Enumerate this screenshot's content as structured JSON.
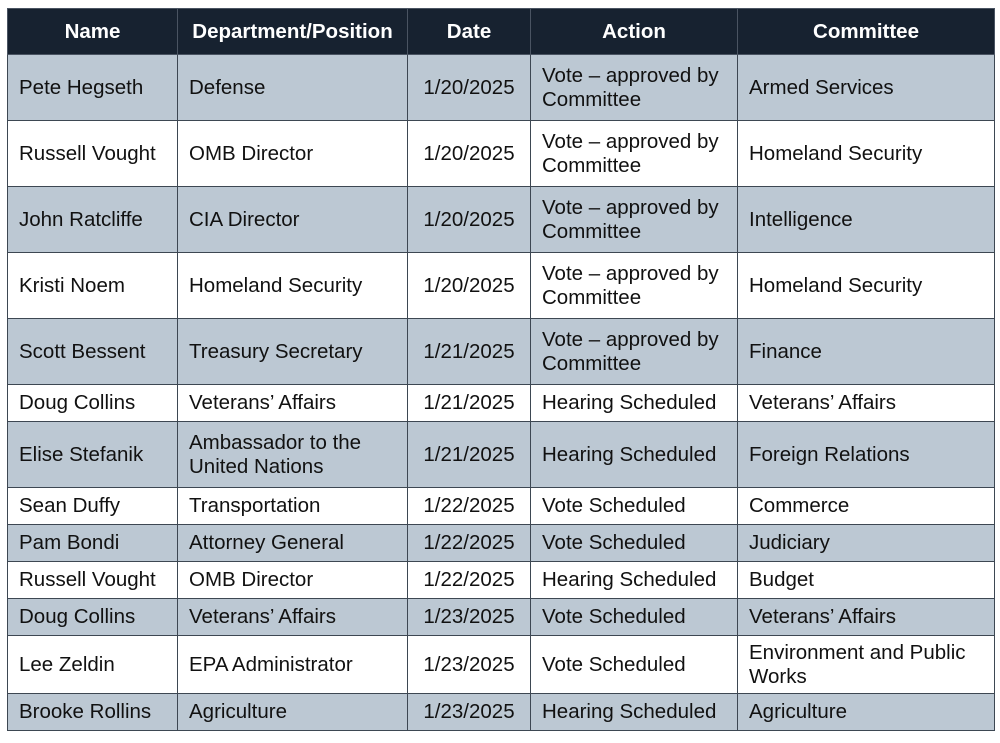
{
  "table": {
    "headers": [
      "Name",
      "Department/Position",
      "Date",
      "Action",
      "Committee"
    ],
    "rows": [
      {
        "name": "Pete Hegseth",
        "department": "Defense",
        "date": "1/20/2025",
        "action": "Vote – approved by Committee",
        "committee": "Armed Services"
      },
      {
        "name": "Russell Vought",
        "department": "OMB Director",
        "date": "1/20/2025",
        "action": "Vote – approved by Committee",
        "committee": "Homeland Security"
      },
      {
        "name": "John Ratcliffe",
        "department": "CIA Director",
        "date": "1/20/2025",
        "action": "Vote – approved by Committee",
        "committee": "Intelligence"
      },
      {
        "name": "Kristi Noem",
        "department": "Homeland Security",
        "date": "1/20/2025",
        "action": "Vote – approved by Committee",
        "committee": "Homeland Security"
      },
      {
        "name": "Scott Bessent",
        "department": "Treasury Secretary",
        "date": "1/21/2025",
        "action": "Vote – approved by Committee",
        "committee": "Finance"
      },
      {
        "name": "Doug Collins",
        "department": "Veterans’ Affairs",
        "date": "1/21/2025",
        "action": "Hearing Scheduled",
        "committee": "Veterans’ Affairs"
      },
      {
        "name": "Elise Stefanik",
        "department": "Ambassador to the United Nations",
        "date": "1/21/2025",
        "action": "Hearing Scheduled",
        "committee": "Foreign Relations"
      },
      {
        "name": "Sean Duffy",
        "department": "Transportation",
        "date": "1/22/2025",
        "action": "Vote Scheduled",
        "committee": "Commerce"
      },
      {
        "name": "Pam Bondi",
        "department": "Attorney General",
        "date": "1/22/2025",
        "action": "Vote Scheduled",
        "committee": "Judiciary"
      },
      {
        "name": "Russell Vought",
        "department": "OMB Director",
        "date": "1/22/2025",
        "action": "Hearing Scheduled",
        "committee": "Budget"
      },
      {
        "name": "Doug Collins",
        "department": "Veterans’ Affairs",
        "date": "1/23/2025",
        "action": "Vote Scheduled",
        "committee": "Veterans’ Affairs"
      },
      {
        "name": "Lee Zeldin",
        "department": "EPA Administrator",
        "date": "1/23/2025",
        "action": "Vote Scheduled",
        "committee": "Environment and Public Works"
      },
      {
        "name": "Brooke Rollins",
        "department": "Agriculture",
        "date": "1/23/2025",
        "action": "Hearing Scheduled",
        "committee": "Agriculture"
      }
    ]
  },
  "colors": {
    "header_bg": "#172230",
    "header_text": "#ffffff",
    "row_shade": "#bcc8d3",
    "row_plain": "#ffffff",
    "border": "#3d4752"
  }
}
